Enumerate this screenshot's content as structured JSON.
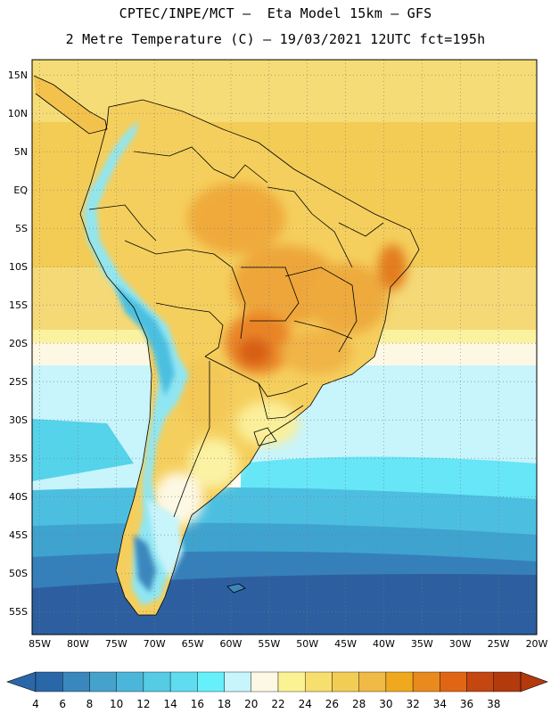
{
  "title": {
    "line1": "CPTEC/INPE/MCT –  Eta Model 15km – GFS",
    "line2": "2 Metre Temperature (C) – 19/03/2021 12UTC fct=195h"
  },
  "axes": {
    "lon_labels": [
      "85W",
      "80W",
      "75W",
      "70W",
      "65W",
      "60W",
      "55W",
      "50W",
      "45W",
      "40W",
      "35W",
      "30W",
      "25W",
      "20W"
    ],
    "lon_values": [
      -85,
      -80,
      -75,
      -70,
      -65,
      -60,
      -55,
      -50,
      -45,
      -40,
      -35,
      -30,
      -25,
      -20
    ],
    "lat_labels": [
      "15N",
      "10N",
      "5N",
      "EQ",
      "5S",
      "10S",
      "15S",
      "20S",
      "25S",
      "30S",
      "35S",
      "40S",
      "45S",
      "50S",
      "55S"
    ],
    "lat_values": [
      15,
      10,
      5,
      0,
      -5,
      -10,
      -15,
      -20,
      -25,
      -30,
      -35,
      -40,
      -45,
      -50,
      -55
    ],
    "lon_range": [
      -86,
      -20
    ],
    "lat_range": [
      -58,
      17
    ]
  },
  "colorbar": {
    "labels": [
      "4",
      "6",
      "8",
      "10",
      "12",
      "14",
      "16",
      "18",
      "20",
      "22",
      "24",
      "26",
      "28",
      "30",
      "32",
      "34",
      "36",
      "38"
    ],
    "colors": [
      "#2a67a8",
      "#3a87bd",
      "#45a2cb",
      "#4cb6da",
      "#55cbe4",
      "#5fdcef",
      "#66f0fb",
      "#c8f4fb",
      "#fdf8e4",
      "#fbf293",
      "#f7df6d",
      "#f2cd55",
      "#efba45",
      "#f0a91e",
      "#e88a1d",
      "#e06616",
      "#c44611",
      "#b23a0c"
    ]
  },
  "colors": {
    "deep_ocean": "#2d5fa0",
    "ocean_mid": "#3fa3cf",
    "ocean_light": "#5ed7ec",
    "pale_blue": "#c8f4fb",
    "warm_yellow": "#f7d868",
    "hot_orange": "#efa83a"
  }
}
